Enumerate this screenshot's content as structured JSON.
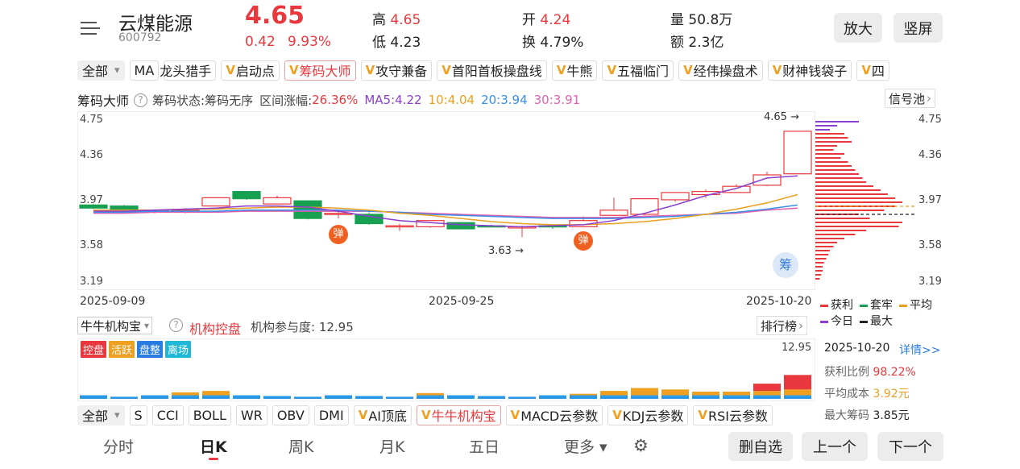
{
  "header": {
    "name": "云煤能源",
    "code": "600792",
    "price": "4.65",
    "change": "0.42",
    "change_pct": "9.93%",
    "high_label": "高",
    "high": "4.65",
    "low_label": "低",
    "low": "4.23",
    "open_label": "开",
    "open": "4.24",
    "turnover_label": "换",
    "turnover": "4.79%",
    "volume_label": "量",
    "volume": "50.8万",
    "amount_label": "额",
    "amount": "2.3亿",
    "zoom_button": "放大",
    "portrait_button": "竖屏"
  },
  "indicator_bar1": {
    "all": "全部",
    "items": [
      {
        "label": "MA",
        "v": false,
        "active": false
      },
      {
        "label": "龙头猎手",
        "v": false,
        "active": false,
        "clip": true
      },
      {
        "label": "启动点",
        "v": true,
        "active": false
      },
      {
        "label": "筹码大师",
        "v": true,
        "active": true
      },
      {
        "label": "攻守兼备",
        "v": true,
        "active": false
      },
      {
        "label": "首阳首板操盘线",
        "v": true,
        "active": false
      },
      {
        "label": "牛熊",
        "v": true,
        "active": false
      },
      {
        "label": "五福临门",
        "v": true,
        "active": false
      },
      {
        "label": "经伟操盘术",
        "v": true,
        "active": false
      },
      {
        "label": "财神钱袋子",
        "v": true,
        "active": false
      },
      {
        "label": "四",
        "v": true,
        "active": false
      }
    ]
  },
  "main_chart_header": {
    "title": "筹码大师",
    "status": "筹码状态:筹码无序",
    "range_label": "区间涨幅:",
    "range_value": "26.36%",
    "ma5": "MA5:4.22",
    "ma10": "10:4.04",
    "ma20": "20:3.94",
    "ma30": "30:3.91",
    "signal_pool": "信号池",
    "colors": {
      "ma5": "#8a3fd0",
      "ma10": "#e8a020",
      "ma20": "#3a8ee8",
      "ma30": "#e060b0"
    }
  },
  "main_chart": {
    "left_ticks": [
      "4.75",
      "4.36",
      "3.97",
      "3.58",
      "3.19"
    ],
    "right_ticks": [
      "4.75",
      "4.36",
      "3.97",
      "3.58",
      "3.19"
    ],
    "dates": [
      "2025-09-09",
      "2025-09-25",
      "2025-10-20"
    ],
    "high_marker": "4.65",
    "low_marker": "3.63",
    "bounce_marker": "弹",
    "chip_badge": "筹"
  },
  "chip_legend": {
    "profit": "获利",
    "trapped": "套牢",
    "avg": "平均",
    "today": "今日",
    "max": "最大"
  },
  "sub_chart_header": {
    "selector": "牛牛机构宝",
    "title": "机构控盘",
    "participation": "机构参与度: 12.95",
    "rank": "排行榜",
    "max_value": "12.95",
    "tags": [
      "控盘",
      "活跃",
      "盘整",
      "离场"
    ]
  },
  "info_panel": {
    "date": "2025-10-20",
    "detail": "详情>>",
    "profit_ratio_label": "获利比例",
    "profit_ratio": "98.22%",
    "avg_cost_label": "平均成本",
    "avg_cost": "3.92元",
    "max_chip_label": "最大筹码",
    "max_chip": "3.85元"
  },
  "indicator_bar2": {
    "all": "全部",
    "items": [
      {
        "label": "S",
        "v": false,
        "active": false
      },
      {
        "label": "CCI",
        "v": false,
        "active": false
      },
      {
        "label": "BOLL",
        "v": false,
        "active": false
      },
      {
        "label": "WR",
        "v": false,
        "active": false
      },
      {
        "label": "OBV",
        "v": false,
        "active": false
      },
      {
        "label": "DMI",
        "v": false,
        "active": false
      },
      {
        "label": "AI顶底",
        "v": true,
        "active": false
      },
      {
        "label": "牛牛机构宝",
        "v": true,
        "active": true
      },
      {
        "label": "MACD云参数",
        "v": true,
        "active": false
      },
      {
        "label": "KDJ云参数",
        "v": true,
        "active": false
      },
      {
        "label": "RSI云参数",
        "v": true,
        "active": false
      }
    ]
  },
  "bottom_nav": {
    "tabs": [
      "分时",
      "日K",
      "周K",
      "月K",
      "五日",
      "更多"
    ],
    "active": "日K",
    "delete_button": "删自选",
    "prev_button": "上一个",
    "next_button": "下一个"
  },
  "chart_data": {
    "type": "candlestick",
    "y_range": [
      3.19,
      4.75
    ],
    "candles": [
      {
        "o": 3.94,
        "c": 3.91,
        "h": 3.95,
        "l": 3.9
      },
      {
        "o": 3.93,
        "c": 3.87,
        "h": 3.94,
        "l": 3.86
      },
      {
        "o": 3.88,
        "c": 3.89,
        "h": 3.9,
        "l": 3.86
      },
      {
        "o": 3.87,
        "c": 3.89,
        "h": 3.91,
        "l": 3.86
      },
      {
        "o": 3.93,
        "c": 4.01,
        "h": 4.01,
        "l": 3.93
      },
      {
        "o": 4.07,
        "c": 4.0,
        "h": 4.07,
        "l": 3.99
      },
      {
        "o": 3.95,
        "c": 4.01,
        "h": 4.03,
        "l": 3.95
      },
      {
        "o": 3.98,
        "c": 3.81,
        "h": 3.98,
        "l": 3.8
      },
      {
        "o": 3.86,
        "c": 3.86,
        "h": 3.88,
        "l": 3.81
      },
      {
        "o": 3.85,
        "c": 3.76,
        "h": 3.87,
        "l": 3.75
      },
      {
        "o": 3.74,
        "c": 3.74,
        "h": 3.76,
        "l": 3.69
      },
      {
        "o": 3.73,
        "c": 3.79,
        "h": 3.79,
        "l": 3.72
      },
      {
        "o": 3.77,
        "c": 3.71,
        "h": 3.77,
        "l": 3.71
      },
      {
        "o": 3.74,
        "c": 3.73,
        "h": 3.75,
        "l": 3.73
      },
      {
        "o": 3.73,
        "c": 3.73,
        "h": 3.74,
        "l": 3.63
      },
      {
        "o": 3.74,
        "c": 3.73,
        "h": 3.75,
        "l": 3.71
      },
      {
        "o": 3.73,
        "c": 3.79,
        "h": 3.83,
        "l": 3.73
      },
      {
        "o": 3.84,
        "c": 3.89,
        "h": 4.01,
        "l": 3.84
      },
      {
        "o": 3.85,
        "c": 4.0,
        "h": 4.0,
        "l": 3.84
      },
      {
        "o": 3.99,
        "c": 4.06,
        "h": 4.06,
        "l": 3.97
      },
      {
        "o": 4.04,
        "c": 4.07,
        "h": 4.09,
        "l": 4.01
      },
      {
        "o": 4.06,
        "c": 4.12,
        "h": 4.14,
        "l": 4.06
      },
      {
        "o": 4.13,
        "c": 4.23,
        "h": 4.26,
        "l": 4.12
      },
      {
        "o": 4.24,
        "c": 4.65,
        "h": 4.65,
        "l": 4.24
      }
    ],
    "ma5": [
      3.88,
      3.88,
      3.89,
      3.9,
      3.91,
      3.93,
      3.93,
      3.92,
      3.88,
      3.83,
      3.79,
      3.77,
      3.75,
      3.74,
      3.73,
      3.74,
      3.75,
      3.79,
      3.86,
      3.94,
      4.03,
      4.1,
      4.2,
      4.22
    ],
    "ma10": [
      3.89,
      3.89,
      3.89,
      3.9,
      3.9,
      3.91,
      3.92,
      3.92,
      3.91,
      3.89,
      3.86,
      3.84,
      3.81,
      3.78,
      3.76,
      3.75,
      3.75,
      3.76,
      3.78,
      3.81,
      3.85,
      3.9,
      3.96,
      4.04
    ],
    "ma20": [
      3.87,
      3.87,
      3.88,
      3.88,
      3.88,
      3.89,
      3.89,
      3.89,
      3.89,
      3.88,
      3.87,
      3.85,
      3.84,
      3.83,
      3.82,
      3.81,
      3.81,
      3.81,
      3.82,
      3.83,
      3.85,
      3.87,
      3.9,
      3.94
    ],
    "ma30": [
      3.86,
      3.86,
      3.87,
      3.87,
      3.87,
      3.88,
      3.88,
      3.88,
      3.88,
      3.88,
      3.87,
      3.86,
      3.85,
      3.84,
      3.83,
      3.82,
      3.82,
      3.82,
      3.83,
      3.84,
      3.85,
      3.86,
      3.89,
      3.91
    ],
    "institution_bars": [
      {
        "blue": 0.5,
        "orange": 0,
        "red": 0
      },
      {
        "blue": 0.3,
        "orange": 0,
        "red": 0
      },
      {
        "blue": 0.5,
        "orange": 0,
        "red": 0
      },
      {
        "blue": 0.5,
        "orange": 0.4,
        "red": 0
      },
      {
        "blue": 0.5,
        "orange": 0.6,
        "red": 0
      },
      {
        "blue": 0.5,
        "orange": 0,
        "red": 0
      },
      {
        "blue": 0.4,
        "orange": 0,
        "red": 0
      },
      {
        "blue": 0.3,
        "orange": 0,
        "red": 0
      },
      {
        "blue": 0.5,
        "orange": 0,
        "red": 0
      },
      {
        "blue": 0.4,
        "orange": 0,
        "red": 0
      },
      {
        "blue": 0.3,
        "orange": 0,
        "red": 0
      },
      {
        "blue": 0.5,
        "orange": 0.3,
        "red": 0
      },
      {
        "blue": 0.5,
        "orange": 0,
        "red": 0
      },
      {
        "blue": 0.4,
        "orange": 0,
        "red": 0
      },
      {
        "blue": 0.3,
        "orange": 0,
        "red": 0
      },
      {
        "blue": 0.5,
        "orange": 0,
        "red": 0
      },
      {
        "blue": 0.5,
        "orange": 0.2,
        "red": 0
      },
      {
        "blue": 0.5,
        "orange": 0.6,
        "red": 0
      },
      {
        "blue": 0.5,
        "orange": 1.0,
        "red": 0
      },
      {
        "blue": 0.5,
        "orange": 0.8,
        "red": 0
      },
      {
        "blue": 0.5,
        "orange": 0.5,
        "red": 0
      },
      {
        "blue": 0.5,
        "orange": 0.5,
        "red": 0
      },
      {
        "blue": 0.5,
        "orange": 0.6,
        "red": 1.0
      },
      {
        "blue": 0.5,
        "orange": 0.8,
        "red": 2.0
      }
    ]
  }
}
